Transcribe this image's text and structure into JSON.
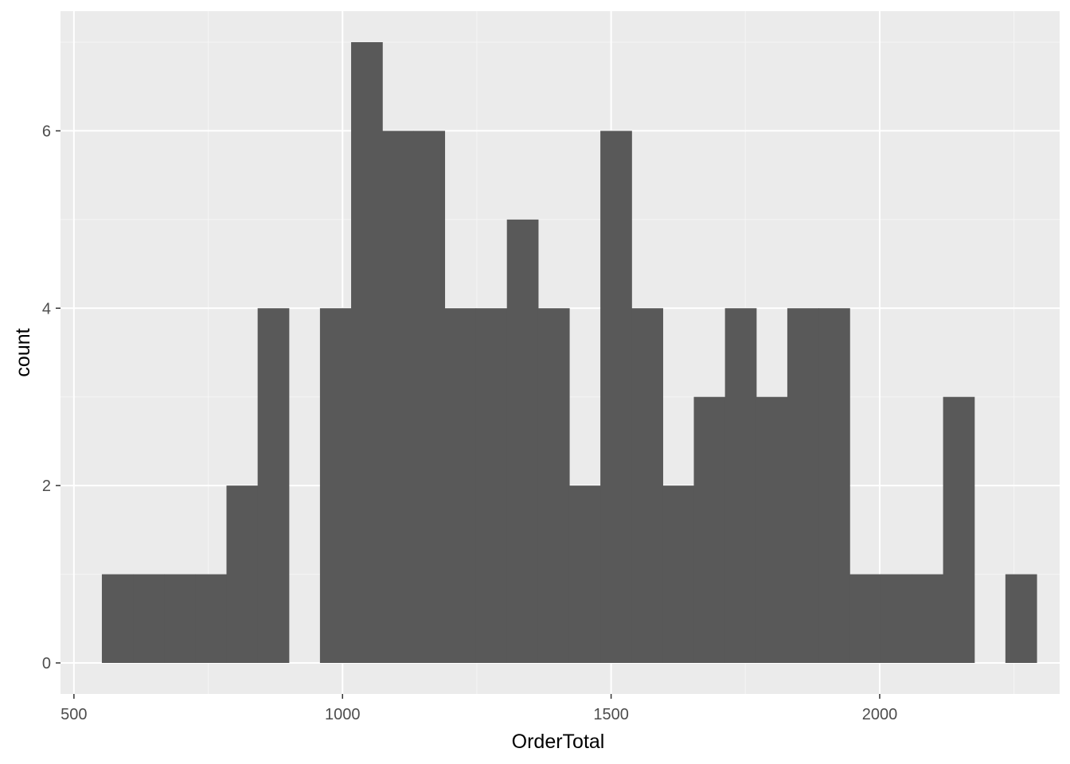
{
  "chart_data": {
    "type": "histogram",
    "title": "",
    "xlabel": "OrderTotal",
    "ylabel": "count",
    "xlim": [
      475,
      2335
    ],
    "ylim": [
      -0.35,
      7.35
    ],
    "x_ticks": [
      500,
      1000,
      1500,
      2000
    ],
    "x_tick_labels": [
      "500",
      "1000",
      "1500",
      "2000"
    ],
    "y_ticks": [
      0,
      2,
      4,
      6
    ],
    "y_tick_labels": [
      "0",
      "2",
      "4",
      "6"
    ],
    "x_minor_ticks": [
      750,
      1250,
      1750,
      2250
    ],
    "y_minor_ticks": [
      1,
      3,
      5,
      7
    ],
    "grid": true,
    "bin_width": 58,
    "bins": [
      {
        "x0": 552,
        "x1": 610,
        "count": 1
      },
      {
        "x0": 610,
        "x1": 668,
        "count": 1
      },
      {
        "x0": 668,
        "x1": 726,
        "count": 1
      },
      {
        "x0": 726,
        "x1": 784,
        "count": 1
      },
      {
        "x0": 784,
        "x1": 842,
        "count": 2
      },
      {
        "x0": 842,
        "x1": 900,
        "count": 4
      },
      {
        "x0": 900,
        "x1": 958,
        "count": 0
      },
      {
        "x0": 958,
        "x1": 1016,
        "count": 4
      },
      {
        "x0": 1016,
        "x1": 1074,
        "count": 7
      },
      {
        "x0": 1074,
        "x1": 1132,
        "count": 6
      },
      {
        "x0": 1132,
        "x1": 1190,
        "count": 6
      },
      {
        "x0": 1190,
        "x1": 1248,
        "count": 4
      },
      {
        "x0": 1248,
        "x1": 1306,
        "count": 4
      },
      {
        "x0": 1306,
        "x1": 1364,
        "count": 5
      },
      {
        "x0": 1364,
        "x1": 1422,
        "count": 4
      },
      {
        "x0": 1422,
        "x1": 1480,
        "count": 2
      },
      {
        "x0": 1480,
        "x1": 1538,
        "count": 6
      },
      {
        "x0": 1538,
        "x1": 1596,
        "count": 4
      },
      {
        "x0": 1596,
        "x1": 1654,
        "count": 2
      },
      {
        "x0": 1654,
        "x1": 1712,
        "count": 3
      },
      {
        "x0": 1712,
        "x1": 1770,
        "count": 4
      },
      {
        "x0": 1770,
        "x1": 1828,
        "count": 3
      },
      {
        "x0": 1828,
        "x1": 1886,
        "count": 4
      },
      {
        "x0": 1886,
        "x1": 1944,
        "count": 4
      },
      {
        "x0": 1944,
        "x1": 2002,
        "count": 1
      },
      {
        "x0": 2002,
        "x1": 2060,
        "count": 1
      },
      {
        "x0": 2060,
        "x1": 2118,
        "count": 1
      },
      {
        "x0": 2118,
        "x1": 2176,
        "count": 3
      },
      {
        "x0": 2176,
        "x1": 2234,
        "count": 0
      },
      {
        "x0": 2234,
        "x1": 2292,
        "count": 1
      }
    ],
    "colors": {
      "panel_background": "#ebebeb",
      "grid_major": "#ffffff",
      "grid_minor": "#f5f5f5",
      "bar_fill": "#595959",
      "tick": "#333333",
      "tick_label": "#4d4d4d",
      "axis_title": "#000000"
    }
  }
}
